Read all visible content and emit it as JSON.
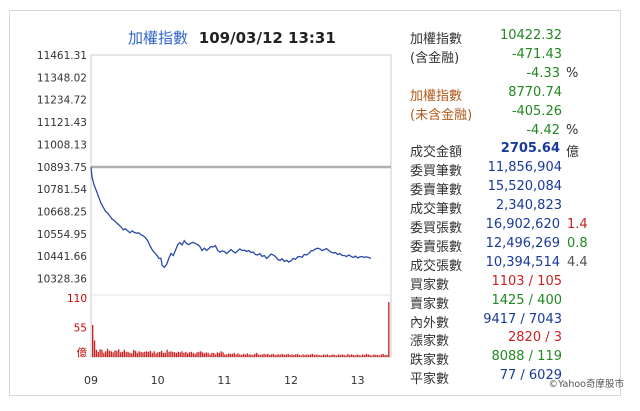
{
  "header": {
    "index_name": "加權指數",
    "datetime": "109/03/12 13:31",
    "name_color": "#3366cc"
  },
  "chart_data": {
    "type": "line",
    "title": "加權指數 109/03/12 13:31",
    "y_ticks": [
      "11461.31",
      "11348.02",
      "11234.72",
      "11121.43",
      "11008.13",
      "10893.75",
      "10781.54",
      "10668.25",
      "10554.95",
      "10441.66",
      "10328.36"
    ],
    "ylim": [
      10270,
      11461.31
    ],
    "reference_value": 10893.75,
    "reference_color": "#b0b0b0",
    "line_color": "#2a4aa8",
    "x_ticks": [
      "09",
      "10",
      "11",
      "12",
      "13"
    ],
    "x_tick_minutes": [
      0,
      60,
      120,
      180,
      240
    ],
    "session_minutes": [
      0,
      270
    ],
    "series": [
      {
        "values": [
          [
            0,
            10893
          ],
          [
            1,
            10840
          ],
          [
            3,
            10800
          ],
          [
            5,
            10770
          ],
          [
            7,
            10740
          ],
          [
            9,
            10710
          ],
          [
            11,
            10690
          ],
          [
            13,
            10670
          ],
          [
            15,
            10660
          ],
          [
            17,
            10645
          ],
          [
            19,
            10630
          ],
          [
            21,
            10622
          ],
          [
            23,
            10610
          ],
          [
            25,
            10600
          ],
          [
            27,
            10590
          ],
          [
            29,
            10575
          ],
          [
            31,
            10580
          ],
          [
            33,
            10570
          ],
          [
            35,
            10560
          ],
          [
            37,
            10570
          ],
          [
            39,
            10562
          ],
          [
            41,
            10558
          ],
          [
            43,
            10560
          ],
          [
            45,
            10550
          ],
          [
            47,
            10545
          ],
          [
            49,
            10535
          ],
          [
            51,
            10520
          ],
          [
            53,
            10495
          ],
          [
            55,
            10475
          ],
          [
            57,
            10460
          ],
          [
            59,
            10448
          ],
          [
            61,
            10430
          ],
          [
            63,
            10430
          ],
          [
            64,
            10395
          ],
          [
            66,
            10385
          ],
          [
            68,
            10400
          ],
          [
            70,
            10430
          ],
          [
            72,
            10455
          ],
          [
            74,
            10445
          ],
          [
            76,
            10470
          ],
          [
            78,
            10500
          ],
          [
            80,
            10510
          ],
          [
            82,
            10498
          ],
          [
            84,
            10520
          ],
          [
            86,
            10505
          ],
          [
            88,
            10500
          ],
          [
            90,
            10508
          ],
          [
            92,
            10512
          ],
          [
            94,
            10505
          ],
          [
            96,
            10500
          ],
          [
            98,
            10490
          ],
          [
            100,
            10470
          ],
          [
            102,
            10482
          ],
          [
            104,
            10470
          ],
          [
            106,
            10480
          ],
          [
            108,
            10490
          ],
          [
            110,
            10488
          ],
          [
            112,
            10495
          ],
          [
            114,
            10470
          ],
          [
            116,
            10462
          ],
          [
            118,
            10468
          ],
          [
            120,
            10465
          ],
          [
            122,
            10455
          ],
          [
            124,
            10465
          ],
          [
            126,
            10475
          ],
          [
            128,
            10465
          ],
          [
            130,
            10458
          ],
          [
            132,
            10468
          ],
          [
            134,
            10478
          ],
          [
            136,
            10470
          ],
          [
            138,
            10472
          ],
          [
            140,
            10465
          ],
          [
            142,
            10470
          ],
          [
            144,
            10460
          ],
          [
            146,
            10462
          ],
          [
            148,
            10450
          ],
          [
            150,
            10448
          ],
          [
            152,
            10455
          ],
          [
            154,
            10440
          ],
          [
            156,
            10445
          ],
          [
            158,
            10430
          ],
          [
            160,
            10440
          ],
          [
            162,
            10452
          ],
          [
            164,
            10448
          ],
          [
            166,
            10440
          ],
          [
            168,
            10425
          ],
          [
            170,
            10420
          ],
          [
            172,
            10428
          ],
          [
            174,
            10415
          ],
          [
            176,
            10420
          ],
          [
            178,
            10412
          ],
          [
            180,
            10418
          ],
          [
            182,
            10430
          ],
          [
            184,
            10425
          ],
          [
            186,
            10438
          ],
          [
            188,
            10440
          ],
          [
            190,
            10436
          ],
          [
            192,
            10450
          ],
          [
            194,
            10448
          ],
          [
            196,
            10455
          ],
          [
            198,
            10468
          ],
          [
            200,
            10470
          ],
          [
            202,
            10478
          ],
          [
            204,
            10482
          ],
          [
            206,
            10478
          ],
          [
            208,
            10470
          ],
          [
            210,
            10475
          ],
          [
            212,
            10480
          ],
          [
            214,
            10470
          ],
          [
            216,
            10462
          ],
          [
            218,
            10458
          ],
          [
            220,
            10460
          ],
          [
            222,
            10450
          ],
          [
            224,
            10455
          ],
          [
            226,
            10445
          ],
          [
            228,
            10445
          ],
          [
            230,
            10440
          ],
          [
            232,
            10448
          ],
          [
            234,
            10441
          ],
          [
            236,
            10435
          ],
          [
            238,
            10442
          ],
          [
            240,
            10432
          ],
          [
            242,
            10438
          ],
          [
            244,
            10440
          ],
          [
            246,
            10436
          ],
          [
            248,
            10438
          ],
          [
            250,
            10435
          ],
          [
            251,
            10431
          ],
          [
            252,
            10432
          ]
        ]
      }
    ],
    "volume": {
      "y_ticks": [
        "110",
        "55",
        "億"
      ],
      "ylim": [
        0,
        110
      ],
      "color": "#cc2222",
      "values": [
        62,
        32,
        14,
        10,
        15,
        14,
        8,
        11,
        16,
        12,
        11,
        9,
        13,
        12,
        15,
        9,
        10,
        14,
        10,
        10,
        8,
        7,
        14,
        12,
        8,
        11,
        10,
        9,
        10,
        11,
        10,
        12,
        8,
        11,
        7,
        9,
        10,
        12,
        8,
        8,
        14,
        10,
        11,
        10,
        9,
        8,
        10,
        9,
        11,
        8,
        10,
        7,
        9,
        10,
        8,
        6,
        9,
        10,
        11,
        9,
        7,
        9,
        8,
        5,
        8,
        8,
        5,
        9,
        8,
        11,
        9,
        5,
        5,
        7,
        6,
        6,
        8,
        5,
        7,
        5,
        4,
        6,
        5,
        7,
        5,
        5,
        4,
        6,
        8,
        5,
        4,
        5,
        6,
        5,
        6,
        4,
        5,
        6,
        4,
        5,
        5,
        5,
        6,
        4,
        5,
        6,
        4,
        5,
        4,
        5,
        6,
        4,
        3,
        5,
        4,
        5,
        4,
        5,
        6,
        4,
        5,
        4,
        4,
        3,
        5,
        4,
        5,
        3,
        4,
        5,
        4,
        3,
        5,
        4,
        5,
        4,
        3,
        6,
        4,
        5,
        4,
        3,
        5,
        4,
        3,
        5,
        4,
        6,
        5,
        4,
        3,
        5,
        4,
        4,
        3,
        5,
        6,
        4,
        4,
        106
      ]
    }
  },
  "panel": {
    "rows": [
      {
        "label": "加權指數",
        "value": "10422.32",
        "value_color": "#228822",
        "label_color": "#333333"
      },
      {
        "label": "(含金融)",
        "value": "-471.43",
        "value_color": "#228822",
        "label_color": "#333333"
      },
      {
        "label": "",
        "value": "-4.33",
        "value_color": "#228822",
        "suffix": "%"
      },
      {
        "label": "加權指數",
        "value": "8770.74",
        "value_color": "#228822",
        "label_color": "#b05a1a"
      },
      {
        "label": "(未含金融)",
        "value": "-405.26",
        "value_color": "#228822",
        "label_color": "#b05a1a"
      },
      {
        "label": "",
        "value": "-4.42",
        "value_color": "#228822",
        "suffix": "%"
      },
      {
        "label": "成交金額",
        "value": "2705.64",
        "value_color": "#1a3a9a",
        "suffix": "億",
        "value_bold": true
      },
      {
        "label": "委買筆數",
        "value": "11,856,904",
        "value_color": "#1a3a9a"
      },
      {
        "label": "委賣筆數",
        "value": "15,520,084",
        "value_color": "#1a3a9a"
      },
      {
        "label": "成交筆數",
        "value": "2,340,823",
        "value_color": "#1a3a9a"
      },
      {
        "label": "委買張數",
        "value": "16,902,620",
        "value_color": "#1a3a9a",
        "extra": "1.4",
        "extra_color": "#cc2222"
      },
      {
        "label": "委賣張數",
        "value": "12,496,269",
        "value_color": "#1a3a9a",
        "extra": "0.8",
        "extra_color": "#228822"
      },
      {
        "label": "成交張數",
        "value": "10,394,514",
        "value_color": "#1a3a9a",
        "extra": "4.4",
        "extra_color": "#555555"
      },
      {
        "label": "買家數",
        "value": "1103 / 105",
        "value_color": "#cc2222"
      },
      {
        "label": "賣家數",
        "value": "1425 / 400",
        "value_color": "#228822"
      },
      {
        "label": "內外數",
        "value": "9417 / 7043",
        "value_color": "#1a3a9a"
      },
      {
        "label": "漲家數",
        "value": "2820 / 3",
        "value_color": "#cc2222"
      },
      {
        "label": "跌家數",
        "value": "8088 / 119",
        "value_color": "#228822"
      },
      {
        "label": "平家數",
        "value": "77 / 6029",
        "value_color": "#1a3a9a"
      }
    ],
    "credit": "©Yahoo奇摩股市"
  }
}
